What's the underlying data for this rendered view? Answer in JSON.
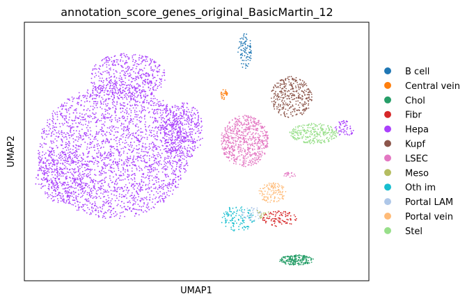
{
  "chart_data": {
    "type": "scatter",
    "title": "annotation_score_genes_original_BasicMartin_12",
    "xlabel": "UMAP1",
    "ylabel": "UMAP2",
    "xlim": [
      0,
      100
    ],
    "ylim": [
      0,
      100
    ],
    "grid": false,
    "ticks": false,
    "legend_position": "right",
    "legend": [
      {
        "label": "B cell",
        "color": "#1f77b4"
      },
      {
        "label": "Central vein",
        "color": "#ff7f0e"
      },
      {
        "label": "Chol",
        "color": "#279e68"
      },
      {
        "label": "Fibr",
        "color": "#d62728"
      },
      {
        "label": "Hepa",
        "color": "#aa40fc"
      },
      {
        "label": "Kupf",
        "color": "#8c564b"
      },
      {
        "label": "LSEC",
        "color": "#e377c2"
      },
      {
        "label": "Meso",
        "color": "#b5bd61"
      },
      {
        "label": "Oth im",
        "color": "#17becf"
      },
      {
        "label": "Portal LAM",
        "color": "#aec7e8"
      },
      {
        "label": "Portal vein",
        "color": "#ffbb78"
      },
      {
        "label": "Stel",
        "color": "#98df8a"
      }
    ],
    "clusters": [
      {
        "label": "Hepa",
        "regions": [
          {
            "cx": 26,
            "cy": 50,
            "rx": 22,
            "ry": 26,
            "n": 2600
          },
          {
            "cx": 30,
            "cy": 79,
            "rx": 11,
            "ry": 9,
            "n": 500
          },
          {
            "cx": 46,
            "cy": 58,
            "rx": 6,
            "ry": 11,
            "n": 400
          },
          {
            "cx": 11,
            "cy": 40,
            "rx": 8,
            "ry": 10,
            "n": 300
          },
          {
            "cx": 93,
            "cy": 59,
            "rx": 3,
            "ry": 3,
            "n": 60
          }
        ]
      },
      {
        "label": "B cell",
        "regions": [
          {
            "cx": 64,
            "cy": 89,
            "rx": 2,
            "ry": 7,
            "n": 90
          }
        ]
      },
      {
        "label": "Central vein",
        "regions": [
          {
            "cx": 58,
            "cy": 72,
            "rx": 1,
            "ry": 2,
            "n": 30
          }
        ]
      },
      {
        "label": "Kupf",
        "regions": [
          {
            "cx": 77.5,
            "cy": 71,
            "rx": 6,
            "ry": 8,
            "n": 350
          }
        ]
      },
      {
        "label": "Stel",
        "regions": [
          {
            "cx": 84,
            "cy": 57,
            "rx": 7,
            "ry": 4,
            "n": 260
          }
        ]
      },
      {
        "label": "LSEC",
        "regions": [
          {
            "cx": 64,
            "cy": 54,
            "rx": 7,
            "ry": 10,
            "n": 650
          },
          {
            "cx": 77,
            "cy": 41,
            "rx": 2,
            "ry": 1,
            "n": 20
          }
        ]
      },
      {
        "label": "Portal vein",
        "regions": [
          {
            "cx": 72,
            "cy": 34,
            "rx": 4,
            "ry": 4,
            "n": 120
          }
        ]
      },
      {
        "label": "Fibr",
        "regions": [
          {
            "cx": 74,
            "cy": 24,
            "rx": 5,
            "ry": 3,
            "n": 100
          }
        ]
      },
      {
        "label": "Oth im",
        "regions": [
          {
            "cx": 62,
            "cy": 24,
            "rx": 5,
            "ry": 5,
            "n": 120
          }
        ]
      },
      {
        "label": "Portal LAM",
        "regions": [
          {
            "cx": 66,
            "cy": 26,
            "rx": 3,
            "ry": 3,
            "n": 40
          }
        ]
      },
      {
        "label": "Chol",
        "regions": [
          {
            "cx": 79,
            "cy": 8,
            "rx": 5,
            "ry": 2,
            "n": 200
          }
        ]
      },
      {
        "label": "Meso",
        "regions": [
          {
            "cx": 69,
            "cy": 26,
            "rx": 2,
            "ry": 2,
            "n": 15
          }
        ]
      }
    ]
  }
}
